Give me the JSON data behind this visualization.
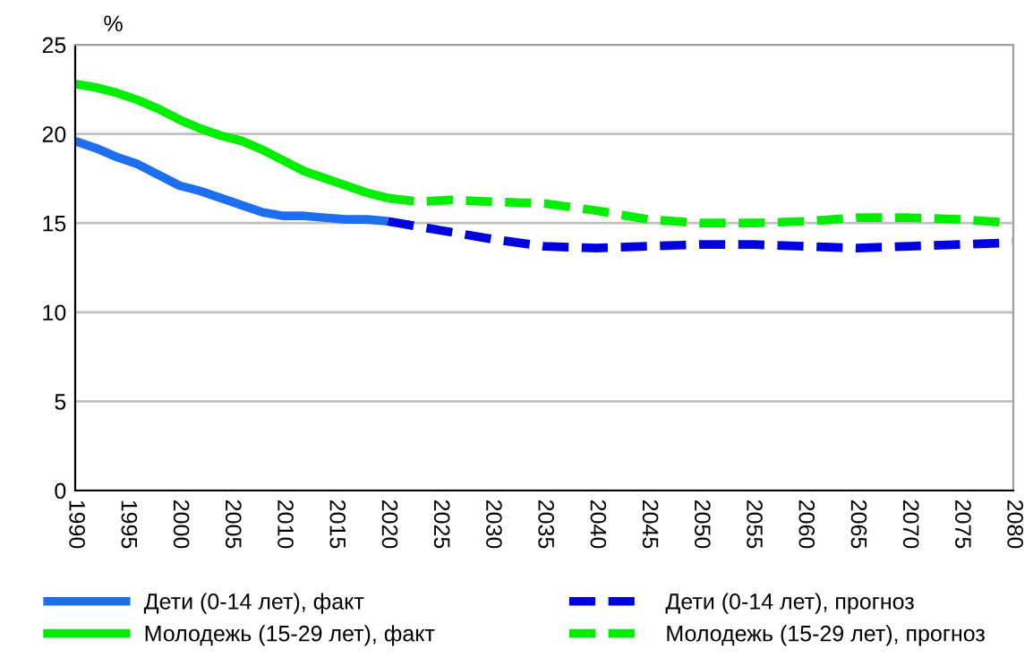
{
  "chart_data": {
    "type": "line",
    "ylabel": "%",
    "xlim": [
      1990,
      2080
    ],
    "xticks": [
      1990,
      1995,
      2000,
      2005,
      2010,
      2015,
      2020,
      2025,
      2030,
      2035,
      2040,
      2045,
      2050,
      2055,
      2060,
      2065,
      2070,
      2075,
      2080
    ],
    "ylim": [
      0,
      25
    ],
    "yticks": [
      0,
      5,
      10,
      15,
      20,
      25
    ],
    "grid": "y",
    "legend": "bottom",
    "series": [
      {
        "name": "Дети (0-14 лет), факт",
        "color": "#1e6ef0",
        "line_style": "solid",
        "x": [
          1990,
          1992,
          1994,
          1996,
          1998,
          2000,
          2002,
          2004,
          2006,
          2008,
          2010,
          2012,
          2014,
          2016,
          2018,
          2020
        ],
        "values": [
          19.6,
          19.2,
          18.7,
          18.3,
          17.7,
          17.1,
          16.8,
          16.4,
          16.0,
          15.6,
          15.4,
          15.4,
          15.3,
          15.2,
          15.2,
          15.1
        ]
      },
      {
        "name": "Молодежь (15-29 лет), факт",
        "color": "#00ee00",
        "line_style": "solid",
        "x": [
          1990,
          1992,
          1994,
          1996,
          1998,
          2000,
          2002,
          2004,
          2006,
          2008,
          2010,
          2012,
          2014,
          2016,
          2018,
          2020
        ],
        "values": [
          22.8,
          22.6,
          22.3,
          21.9,
          21.4,
          20.8,
          20.3,
          19.9,
          19.6,
          19.1,
          18.5,
          17.9,
          17.5,
          17.1,
          16.7,
          16.4
        ]
      },
      {
        "name": "Дети (0-14 лет), прогноз",
        "color": "#0000e0",
        "line_style": "dashed",
        "x": [
          2020,
          2025,
          2030,
          2035,
          2040,
          2045,
          2050,
          2055,
          2060,
          2065,
          2070,
          2075,
          2080
        ],
        "values": [
          15.1,
          14.6,
          14.1,
          13.7,
          13.6,
          13.7,
          13.8,
          13.8,
          13.7,
          13.6,
          13.7,
          13.8,
          13.9
        ]
      },
      {
        "name": "Молодежь (15-29 лет), прогноз",
        "color": "#00ee00",
        "line_style": "dashed",
        "x": [
          2020,
          2023,
          2026,
          2030,
          2035,
          2040,
          2045,
          2050,
          2055,
          2060,
          2065,
          2070,
          2075,
          2080
        ],
        "values": [
          16.4,
          16.2,
          16.3,
          16.2,
          16.1,
          15.7,
          15.2,
          15.0,
          15.0,
          15.1,
          15.3,
          15.3,
          15.2,
          15.0
        ]
      }
    ]
  }
}
